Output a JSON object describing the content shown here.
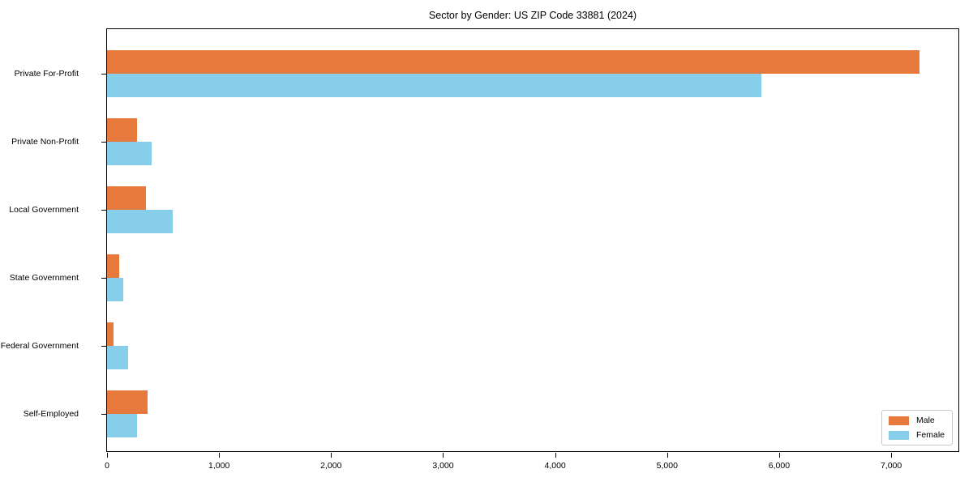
{
  "figure": {
    "title": "Sector by Gender: US ZIP Code 33881 (2024)"
  },
  "chart_data": {
    "type": "bar",
    "orientation": "horizontal",
    "title": "Sector by Gender: US ZIP Code 33881 (2024)",
    "categories": [
      "Private For-Profit",
      "Private Non-Profit",
      "Local Government",
      "State Government",
      "Federal Government",
      "Self-Employed"
    ],
    "series": [
      {
        "name": "Male",
        "color": "#e8793c",
        "values": [
          7250,
          265,
          350,
          110,
          58,
          365
        ]
      },
      {
        "name": "Female",
        "color": "#87ceeb",
        "values": [
          5840,
          400,
          585,
          145,
          190,
          270
        ]
      }
    ],
    "xlabel": "",
    "ylabel": "",
    "xlim": [
      0,
      7600
    ],
    "xticks": [
      0,
      1000,
      2000,
      3000,
      4000,
      5000,
      6000,
      7000
    ],
    "xtick_labels": [
      "0",
      "1,000",
      "2,000",
      "3,000",
      "4,000",
      "5,000",
      "6,000",
      "7,000"
    ],
    "grid": false,
    "legend_position": "lower right",
    "background": "#ffffff",
    "border_color": "#000000"
  }
}
